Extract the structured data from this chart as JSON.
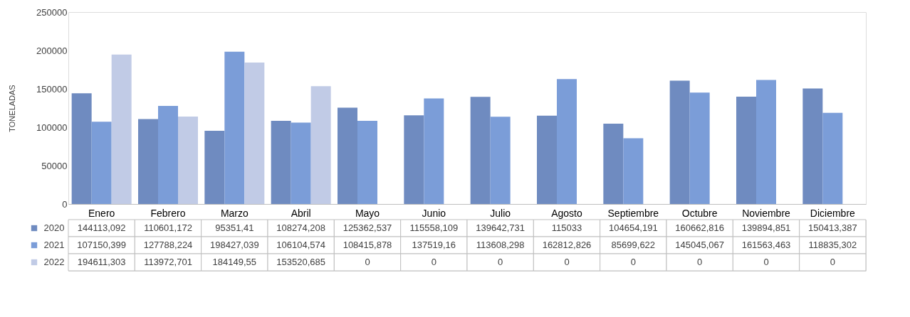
{
  "chart_data": {
    "type": "bar",
    "ylabel": "TONELADAS",
    "categories": [
      "Enero",
      "Febrero",
      "Marzo",
      "Abril",
      "Mayo",
      "Junio",
      "Julio",
      "Agosto",
      "Septiembre",
      "Octubre",
      "Noviembre",
      "Diciembre"
    ],
    "ylim": [
      0,
      250000
    ],
    "yticks": [
      0,
      50000,
      100000,
      150000,
      200000,
      250000
    ],
    "legend": "bottom",
    "series": [
      {
        "name": "2020",
        "color": "#6f8bc0",
        "values": [
          144113.092,
          110601.172,
          95351.41,
          108274.208,
          125362.537,
          115558.109,
          139642.731,
          115033,
          104654.191,
          160662.816,
          139894.851,
          150413.387
        ],
        "value_labels": [
          "144113,092",
          "110601,172",
          "95351,41",
          "108274,208",
          "125362,537",
          "115558,109",
          "139642,731",
          "115033",
          "104654,191",
          "160662,816",
          "139894,851",
          "150413,387"
        ]
      },
      {
        "name": "2021",
        "color": "#7b9dd8",
        "values": [
          107150.399,
          127788.224,
          198427.039,
          106104.574,
          108415.878,
          137519.16,
          113608.298,
          162812.826,
          85699.622,
          145045.067,
          161563.463,
          118835.302
        ],
        "value_labels": [
          "107150,399",
          "127788,224",
          "198427,039",
          "106104,574",
          "108415,878",
          "137519,16",
          "113608,298",
          "162812,826",
          "85699,622",
          "145045,067",
          "161563,463",
          "118835,302"
        ]
      },
      {
        "name": "2022",
        "color": "#c1cbe6",
        "values": [
          194611.303,
          113972.701,
          184149.55,
          153520.685,
          0,
          0,
          0,
          0,
          0,
          0,
          0,
          0
        ],
        "value_labels": [
          "194611,303",
          "113972,701",
          "184149,55",
          "153520,685",
          "0",
          "0",
          "0",
          "0",
          "0",
          "0",
          "0",
          "0"
        ]
      }
    ]
  }
}
